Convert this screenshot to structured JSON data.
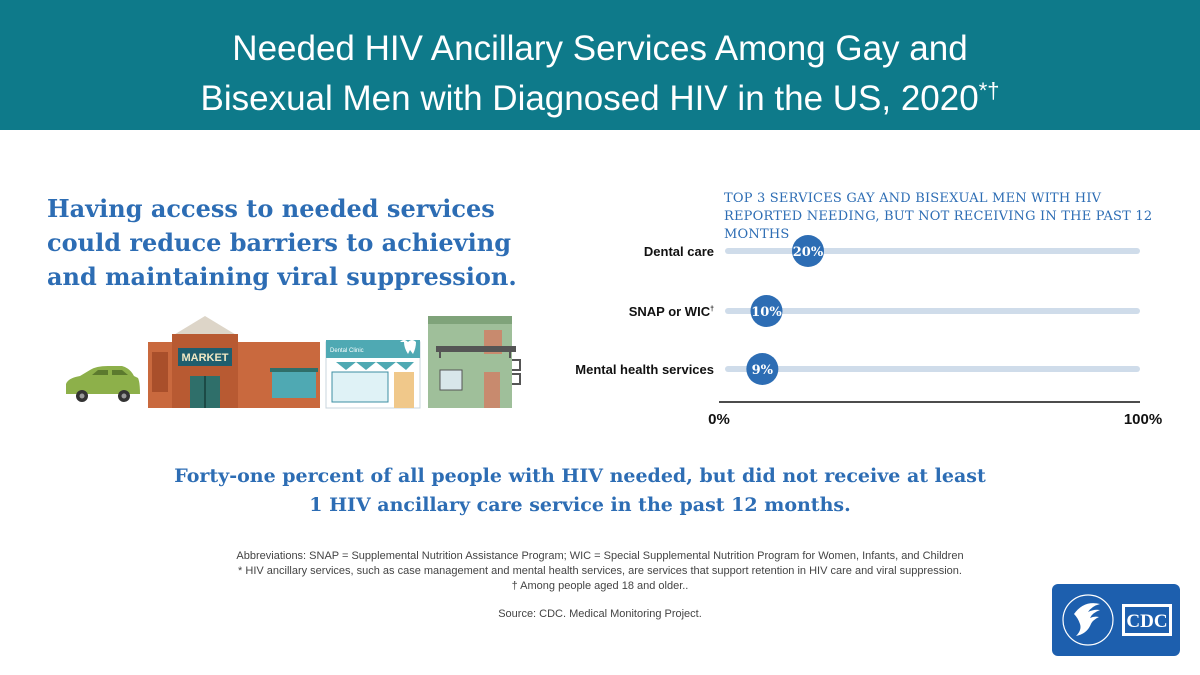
{
  "header": {
    "title_line1": "Needed HIV Ancillary Services Among Gay and",
    "title_line2": "Bisexual Men with Diagnosed HIV in the US, 2020",
    "title_marks": "*†"
  },
  "lead": {
    "text": "Having access to needed services could reduce barriers to achieving and maintaining viral suppression."
  },
  "illustration": {
    "market_sign": "MARKET",
    "clinic_sign": "Dental Clinic"
  },
  "chart_data": {
    "type": "bar",
    "title": "TOP 3 SERVICES GAY AND BISEXUAL MEN WITH HIV REPORTED NEEDING, BUT NOT RECEIVING IN THE PAST 12 MONTHS",
    "categories": [
      "Dental care",
      "SNAP or WIC",
      "Mental health services"
    ],
    "category_marks": [
      "",
      "†",
      ""
    ],
    "values": [
      20,
      10,
      9
    ],
    "value_labels": [
      "20%",
      "10%",
      "9%"
    ],
    "xlim": [
      0,
      100
    ],
    "x_tick_labels": [
      "0%",
      "100%"
    ],
    "grid": false,
    "colors": {
      "marker": "#2d6db4",
      "track": "#cfdcea",
      "axis": "#111111"
    }
  },
  "summary": {
    "text": "Forty-one percent of all people with HIV needed, but did not receive at least 1 HIV ancillary care service in the past 12 months."
  },
  "notes": {
    "abbreviations": "Abbreviations: SNAP = Supplemental Nutrition Assistance Program; WIC = Special Supplemental Nutrition Program for Women, Infants, and Children",
    "footnote_star": "* HIV ancillary services, such as case management and mental health services, are services that support retention in HIV care and viral suppression.",
    "footnote_dagger": "† Among people aged 18 and older..",
    "source": "Source: CDC. Medical Monitoring Project."
  },
  "logo": {
    "text": "CDC"
  },
  "colors": {
    "header": "#0e7a8a",
    "accent_blue": "#2d6db4",
    "logo_blue": "#1d5fae"
  }
}
